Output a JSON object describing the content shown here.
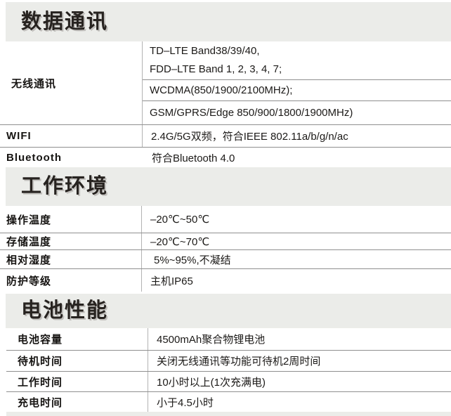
{
  "colors": {
    "page_background": "#ffffff",
    "section_band": "#ebece9",
    "horizontal_rule": "#8f8f8f",
    "vertical_rule": "#b3b3b3",
    "heading_text": "#272320",
    "body_text": "#1c1a18"
  },
  "section_data_comm": {
    "title": "数据通讯",
    "wireless": {
      "label": "无线通讯",
      "lte_line1": "TD–LTE Band38/39/40,",
      "lte_line2": "FDD–LTE Band 1, 2, 3, 4, 7;",
      "wcdma": "WCDMA(850/1900/2100MHz);",
      "gsm": "GSM/GPRS/Edge 850/900/1800/1900MHz)"
    },
    "wifi": {
      "label": "WIFI",
      "value": "2.4G/5G双频，符合IEEE 802.11a/b/g/n/ac"
    },
    "bluetooth": {
      "label": "Bluetooth",
      "value": "符合Bluetooth 4.0"
    }
  },
  "section_environment": {
    "title": "工作环境",
    "rows": [
      {
        "label": "操作温度",
        "value": "–20℃~50℃"
      },
      {
        "label": "存储温度",
        "value": "–20℃~70℃"
      },
      {
        "label": "相对湿度",
        "value": "5%~95%,不凝结"
      },
      {
        "label": "防护等级",
        "value": "主机IP65"
      }
    ]
  },
  "section_battery": {
    "title": "电池性能",
    "rows": [
      {
        "label": "电池容量",
        "value": "4500mAh聚合物锂电池"
      },
      {
        "label": "待机时间",
        "value": "关闭无线通讯等功能可待机2周时间"
      },
      {
        "label": "工作时间",
        "value": "10小时以上(1次充满电)"
      },
      {
        "label": "充电时间",
        "value": "小于4.5小时"
      }
    ]
  }
}
